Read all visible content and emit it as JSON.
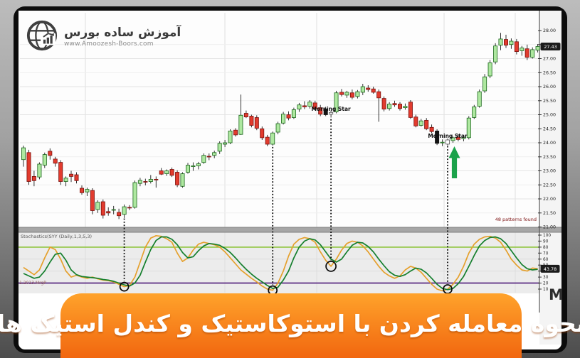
{
  "banner": {
    "title": "نحوه معامله کردن با استوکاستیک و کندل استیک ها",
    "bg_top": "#ffa32b",
    "bg_bottom": "#f1660f",
    "text_color": "#ffffff"
  },
  "logo": {
    "title": "آموزش ساده بورس",
    "url": "www.Amoozesh-Boors.com",
    "icon": "globe-chart-icon",
    "color": "#3f3f3f"
  },
  "chart_data": {
    "type": "candlestick+stochastic",
    "stoch_label": "Stochastics(SYY (Daily,1,3,5,3)",
    "patterns_found_label": "48 patterns found",
    "bottom_left_label": "1.2013.MrgP",
    "corner_mark": "M",
    "price_axis_ticks": [
      "28.00",
      "27.50",
      "27.00",
      "26.50",
      "26.00",
      "25.50",
      "25.00",
      "24.50",
      "24.00",
      "23.50",
      "23.00",
      "22.50",
      "22.00",
      "21.50",
      "21.00"
    ],
    "last_price_label": "27.43",
    "stoch_axis_ticks": [
      "100",
      "90",
      "80",
      "70",
      "60",
      "50",
      "40",
      "30",
      "20",
      "10"
    ],
    "stoch_last_label": "43.78",
    "stoch_levels": {
      "overbought": 80,
      "oversold": 20
    },
    "colors": {
      "up_fill": "#aee8a0",
      "up_stroke": "#1a661a",
      "down_fill": "#e23b2e",
      "down_stroke": "#7a100c",
      "black_fill": "#141414",
      "white_fill": "#ffffff",
      "white_stroke": "#555555",
      "wick": "#1d1d1d",
      "k_line": "#e5a02c",
      "d_line": "#157f2d",
      "overbought_line": "#8fc43c",
      "oversold_line": "#5a2a82",
      "annotation": "#0a0a0a",
      "arrow_green": "#1ba24a",
      "tag_bg": "#1b1b1b",
      "tag_text": "#ffffff"
    },
    "candles": [
      [
        23.4,
        23.9,
        23.15,
        23.82
      ],
      [
        23.65,
        23.75,
        22.5,
        22.62
      ],
      [
        22.8,
        23.0,
        22.45,
        22.65
      ],
      [
        22.78,
        23.3,
        22.7,
        23.24
      ],
      [
        23.2,
        23.65,
        23.1,
        23.58
      ],
      [
        23.7,
        23.8,
        23.4,
        23.55
      ],
      [
        23.42,
        23.5,
        23.15,
        23.27
      ],
      [
        23.3,
        23.38,
        22.5,
        22.62
      ],
      [
        22.62,
        22.8,
        22.45,
        22.74
      ],
      [
        22.88,
        23.0,
        22.6,
        22.8
      ],
      [
        22.86,
        22.95,
        22.55,
        22.65
      ],
      [
        22.38,
        22.48,
        22.15,
        22.22
      ],
      [
        22.25,
        22.4,
        22.1,
        22.34
      ],
      [
        22.3,
        22.38,
        21.45,
        21.58
      ],
      [
        21.62,
        21.95,
        21.5,
        21.88
      ],
      [
        21.9,
        21.98,
        21.3,
        21.42
      ],
      [
        21.55,
        21.7,
        21.4,
        21.5
      ],
      [
        21.6,
        21.75,
        21.45,
        21.62
      ],
      [
        21.52,
        21.65,
        21.28,
        21.4
      ],
      [
        21.45,
        21.8,
        21.32,
        21.72
      ],
      [
        21.7,
        21.78,
        21.6,
        21.68
      ],
      [
        21.7,
        22.65,
        21.65,
        22.58
      ],
      [
        22.55,
        22.75,
        22.45,
        22.66
      ],
      [
        22.62,
        22.72,
        22.48,
        22.6
      ],
      [
        22.62,
        22.85,
        22.55,
        22.7
      ],
      [
        22.7,
        22.8,
        22.4,
        22.68
      ],
      [
        23.0,
        23.1,
        22.85,
        22.88
      ],
      [
        22.9,
        23.05,
        22.82,
        23.0
      ],
      [
        23.05,
        23.12,
        22.78,
        22.84
      ],
      [
        22.95,
        23.02,
        22.42,
        22.5
      ],
      [
        22.45,
        22.95,
        22.4,
        22.9
      ],
      [
        22.95,
        23.28,
        22.9,
        23.2
      ],
      [
        23.15,
        23.3,
        23.0,
        23.18
      ],
      [
        23.18,
        23.32,
        23.05,
        23.25
      ],
      [
        23.3,
        23.62,
        23.25,
        23.55
      ],
      [
        23.52,
        23.62,
        23.38,
        23.5
      ],
      [
        23.55,
        23.72,
        23.45,
        23.65
      ],
      [
        23.7,
        24.05,
        23.6,
        23.98
      ],
      [
        23.95,
        24.1,
        23.85,
        24.0
      ],
      [
        24.0,
        24.48,
        23.95,
        24.42
      ],
      [
        24.45,
        24.52,
        24.22,
        24.28
      ],
      [
        24.3,
        25.72,
        24.28,
        24.98
      ],
      [
        25.05,
        25.15,
        24.88,
        24.92
      ],
      [
        24.95,
        25.0,
        24.55,
        24.62
      ],
      [
        24.9,
        24.98,
        24.45,
        24.52
      ],
      [
        24.5,
        24.58,
        24.1,
        24.18
      ],
      [
        24.2,
        24.28,
        23.88,
        23.95
      ],
      [
        23.95,
        24.4,
        23.9,
        24.35
      ],
      [
        24.38,
        24.75,
        24.3,
        24.68
      ],
      [
        24.7,
        25.1,
        24.65,
        25.02
      ],
      [
        25.0,
        25.12,
        24.8,
        24.88
      ],
      [
        24.9,
        25.25,
        24.85,
        25.18
      ],
      [
        25.2,
        25.42,
        25.1,
        25.35
      ],
      [
        25.32,
        25.48,
        25.2,
        25.28
      ],
      [
        25.3,
        25.52,
        25.22,
        25.45
      ],
      [
        25.42,
        25.5,
        25.15,
        25.22
      ],
      [
        25.25,
        25.35,
        24.95,
        25.02
      ],
      [
        25.2,
        25.28,
        24.95,
        25.0,
        "b"
      ],
      [
        25.02,
        25.15,
        24.9,
        25.08,
        "w"
      ],
      [
        25.1,
        25.85,
        25.05,
        25.78
      ],
      [
        25.8,
        25.92,
        25.65,
        25.72
      ],
      [
        25.7,
        25.85,
        25.6,
        25.8
      ],
      [
        25.78,
        25.9,
        25.55,
        25.62
      ],
      [
        25.65,
        25.88,
        25.58,
        25.82
      ],
      [
        25.8,
        26.1,
        25.7,
        26.0
      ],
      [
        25.95,
        26.05,
        25.82,
        25.9
      ],
      [
        25.92,
        26.0,
        25.75,
        25.8
      ],
      [
        25.82,
        25.9,
        24.75,
        25.6
      ],
      [
        25.58,
        25.65,
        25.12,
        25.2
      ],
      [
        25.22,
        25.45,
        25.15,
        25.38
      ],
      [
        25.4,
        25.5,
        25.28,
        25.35
      ],
      [
        25.38,
        25.45,
        25.15,
        25.22
      ],
      [
        25.25,
        25.4,
        25.18,
        25.3
      ],
      [
        25.45,
        25.52,
        24.85,
        24.9
      ],
      [
        24.92,
        25.0,
        24.55,
        24.6
      ],
      [
        24.62,
        24.85,
        24.58,
        24.78
      ],
      [
        24.8,
        24.88,
        24.45,
        24.5
      ],
      [
        24.55,
        24.65,
        24.35,
        24.4
      ],
      [
        24.42,
        24.48,
        23.92,
        23.98,
        "b"
      ],
      [
        24.0,
        24.12,
        23.88,
        24.02
      ],
      [
        23.95,
        24.15,
        23.9,
        24.1,
        "w"
      ],
      [
        24.08,
        24.22,
        24.0,
        24.18
      ],
      [
        24.2,
        24.3,
        24.05,
        24.12
      ],
      [
        24.15,
        24.28,
        24.05,
        24.2
      ],
      [
        24.18,
        24.95,
        24.12,
        24.88
      ],
      [
        24.9,
        25.35,
        24.85,
        25.28
      ],
      [
        25.3,
        25.9,
        25.25,
        25.82
      ],
      [
        25.85,
        26.45,
        25.78,
        26.35
      ],
      [
        26.38,
        26.95,
        26.3,
        26.85
      ],
      [
        26.88,
        27.55,
        26.8,
        27.45
      ],
      [
        27.48,
        27.92,
        27.3,
        27.7
      ],
      [
        27.68,
        27.85,
        27.38,
        27.48
      ],
      [
        27.5,
        27.72,
        27.35,
        27.62
      ],
      [
        27.6,
        27.7,
        27.15,
        27.25
      ],
      [
        27.28,
        27.45,
        27.1,
        27.38
      ],
      [
        27.35,
        27.5,
        26.95,
        27.05
      ],
      [
        27.05,
        27.4,
        27.0,
        27.32
      ],
      [
        27.3,
        27.52,
        27.22,
        27.43
      ]
    ],
    "stochastic": {
      "k": [
        46,
        40,
        34,
        42,
        62,
        80,
        76,
        60,
        40,
        30,
        33,
        30,
        28,
        30,
        27,
        25,
        24,
        22,
        18,
        14,
        16,
        30,
        55,
        80,
        95,
        99,
        98,
        94,
        88,
        70,
        56,
        62,
        75,
        85,
        88,
        86,
        84,
        80,
        72,
        62,
        52,
        42,
        35,
        28,
        22,
        15,
        10,
        8,
        20,
        40,
        65,
        85,
        93,
        96,
        94,
        88,
        72,
        58,
        48,
        60,
        75,
        86,
        90,
        88,
        82,
        72,
        60,
        48,
        38,
        32,
        28,
        32,
        42,
        48,
        45,
        38,
        28,
        18,
        10,
        7,
        10,
        18,
        30,
        48,
        70,
        85,
        93,
        97,
        98,
        95,
        88,
        75,
        60,
        50,
        42,
        40,
        45,
        44
      ],
      "d": [
        36,
        32,
        28,
        30,
        40,
        55,
        68,
        70,
        58,
        42,
        34,
        31,
        30,
        29,
        28,
        26,
        25,
        23,
        20,
        17,
        15,
        20,
        33,
        55,
        76,
        91,
        97,
        97,
        93,
        84,
        71,
        62,
        64,
        74,
        82,
        86,
        85,
        83,
        78,
        71,
        62,
        52,
        43,
        35,
        28,
        22,
        16,
        11,
        13,
        25,
        40,
        62,
        80,
        90,
        94,
        92,
        84,
        72,
        60,
        55,
        60,
        72,
        83,
        88,
        87,
        81,
        72,
        60,
        49,
        39,
        33,
        31,
        34,
        40,
        45,
        43,
        37,
        28,
        18,
        11,
        9,
        11,
        19,
        31,
        48,
        66,
        82,
        91,
        96,
        97,
        94,
        86,
        74,
        62,
        51,
        44,
        42,
        43
      ]
    },
    "annotations": [
      {
        "label": "",
        "index": 19,
        "line_top_price": 21.3,
        "type": "dotted-line-circle"
      },
      {
        "label": "",
        "index": 47,
        "line_top_price": 23.85,
        "type": "dotted-line-circle"
      },
      {
        "label": "Morning Star",
        "index": 58,
        "line_top_price": 24.84,
        "type": "dotted-line-circle"
      },
      {
        "label": "Morning Star",
        "index": 80,
        "line_top_price": 23.88,
        "type": "dotted-line-circle",
        "arrow": true
      }
    ]
  }
}
